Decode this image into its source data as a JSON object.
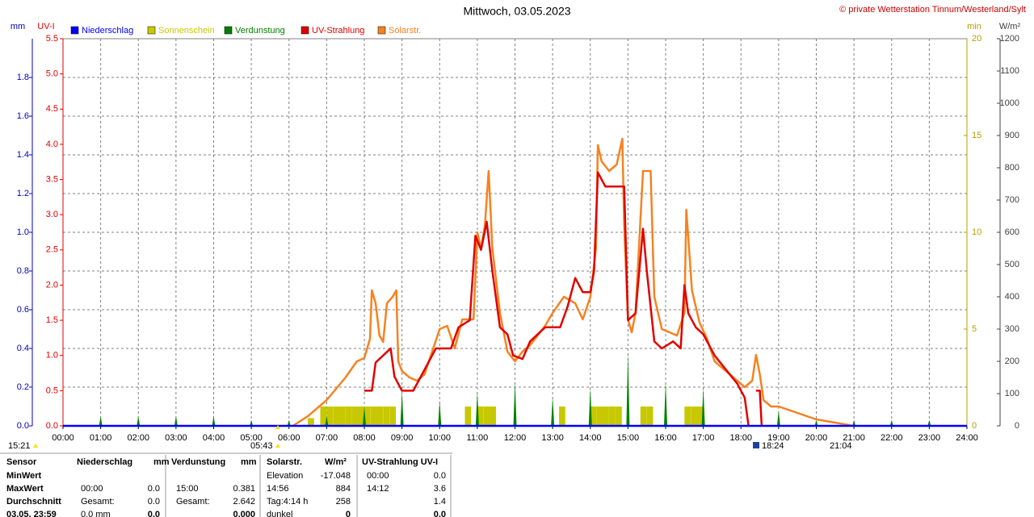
{
  "chart_data": {
    "type": "line",
    "title": "Mittwoch, 03.05.2023",
    "copyright": "© private Wetterstation Tinnum/Westerland/Sylt",
    "xlim": [
      0,
      24
    ],
    "xticks": [
      {
        "value": 0,
        "label": "00:00"
      },
      {
        "value": 1,
        "label": "01:00"
      },
      {
        "value": 2,
        "label": "02:00"
      },
      {
        "value": 3,
        "label": "03:00"
      },
      {
        "value": 4,
        "label": "04:00"
      },
      {
        "value": 5,
        "label": "05:00"
      },
      {
        "value": 6,
        "label": "06:00"
      },
      {
        "value": 7,
        "label": "07:00"
      },
      {
        "value": 8,
        "label": "08:00"
      },
      {
        "value": 9,
        "label": "09:00"
      },
      {
        "value": 10,
        "label": "10:00"
      },
      {
        "value": 11,
        "label": "11:00"
      },
      {
        "value": 12,
        "label": "12:00"
      },
      {
        "value": 13,
        "label": "13:00"
      },
      {
        "value": 14,
        "label": "14:00"
      },
      {
        "value": 15,
        "label": "15:00"
      },
      {
        "value": 16,
        "label": "16:00"
      },
      {
        "value": 17,
        "label": "17:00"
      },
      {
        "value": 18,
        "label": "18:00"
      },
      {
        "value": 19,
        "label": "19:00"
      },
      {
        "value": 20,
        "label": "20:00"
      },
      {
        "value": 21,
        "label": "21:00"
      },
      {
        "value": 22,
        "label": "22:00"
      },
      {
        "value": 23,
        "label": "23:00"
      },
      {
        "value": 24,
        "label": "24:00"
      }
    ],
    "y_label": "mm",
    "ylim": [
      0,
      2.0
    ],
    "yticks": [
      {
        "value": 0,
        "label": "0.0"
      },
      0.2,
      0.4,
      0.6,
      0.8,
      {
        "value": 1,
        "label": "1.0"
      },
      1.2,
      1.4,
      1.6,
      1.8
    ],
    "y2_label": "UV-I",
    "y2lim": [
      0,
      5.5
    ],
    "y2ticks": [
      {
        "value": 0,
        "label": "0.0"
      },
      0.5,
      {
        "value": 1,
        "label": "1.0"
      },
      1.5,
      {
        "value": 2,
        "label": "2.0"
      },
      2.5,
      {
        "value": 3,
        "label": "3.0"
      },
      3.5,
      {
        "value": 4,
        "label": "4.0"
      },
      4.5,
      {
        "value": 5,
        "label": "5.0"
      },
      5.5
    ],
    "y3_label": "min",
    "y3lim": [
      0,
      20
    ],
    "y3ticks": [
      0,
      5,
      10,
      15,
      20
    ],
    "y4_label": "W/m²",
    "y4lim": [
      0,
      1200
    ],
    "y4ticks": [
      0,
      100,
      200,
      300,
      400,
      500,
      600,
      700,
      800,
      900,
      1000,
      1100,
      1200
    ],
    "grid": true,
    "series": [
      {
        "name": "Niederschlag",
        "color": "#0000ff",
        "axis": "y",
        "type": "line",
        "x": [
          0,
          24
        ],
        "values": [
          0,
          0
        ]
      },
      {
        "name": "Sonnenschein",
        "color": "#c8c800",
        "axis": "y3",
        "type": "bar",
        "x": [
          6.5,
          6.83,
          7.0,
          7.17,
          7.33,
          7.5,
          7.67,
          7.83,
          8.0,
          8.17,
          8.33,
          8.5,
          8.67,
          10.67,
          11.0,
          11.17,
          11.33,
          13.17,
          14.0,
          14.17,
          14.33,
          14.5,
          14.67,
          15.33,
          15.5,
          16.5,
          16.67,
          16.83
        ],
        "values": [
          0.4,
          1,
          1,
          1,
          1,
          1,
          1,
          1,
          1,
          1,
          1,
          1,
          1,
          1,
          1,
          1,
          1,
          1,
          1,
          1,
          1,
          1,
          1,
          1,
          1,
          1,
          1,
          1
        ]
      },
      {
        "name": "Verdunstung",
        "color": "#008000",
        "axis": "y",
        "type": "spike",
        "x": [
          1,
          2,
          3,
          4,
          5,
          6,
          7,
          8,
          9,
          10,
          11,
          12,
          13,
          14,
          15,
          16,
          17,
          19,
          20,
          21,
          22,
          23
        ],
        "values": [
          0.05,
          0.05,
          0.05,
          0.05,
          0.03,
          0.03,
          0.05,
          0.1,
          0.18,
          0.13,
          0.18,
          0.23,
          0.15,
          0.2,
          0.381,
          0.23,
          0.2,
          0.08,
          0.03,
          0.03,
          0.03,
          0.03
        ]
      },
      {
        "name": "UV-Strahlung",
        "color": "#e00000",
        "axis": "y2",
        "type": "line",
        "x": [
          8.0,
          8.2,
          8.3,
          8.5,
          8.7,
          8.8,
          9.0,
          9.3,
          9.6,
          9.9,
          10.3,
          10.5,
          10.8,
          10.95,
          11.1,
          11.25,
          11.4,
          11.6,
          11.8,
          11.95,
          12.2,
          12.4,
          12.8,
          13.2,
          13.4,
          13.6,
          13.8,
          14.0,
          14.1,
          14.2,
          14.4,
          14.9,
          15.0,
          15.2,
          15.4,
          15.5,
          15.7,
          15.9,
          16.2,
          16.4,
          16.5,
          16.6,
          16.8,
          17.0,
          17.3,
          17.6,
          17.9,
          18.1,
          18.2,
          18.3,
          18.4,
          18.5,
          18.55
        ],
        "values": [
          0.5,
          0.5,
          0.9,
          1.0,
          1.1,
          0.7,
          0.5,
          0.5,
          0.8,
          1.1,
          1.1,
          1.4,
          1.5,
          2.7,
          2.5,
          2.9,
          2.2,
          1.4,
          1.3,
          1.0,
          0.95,
          1.2,
          1.4,
          1.4,
          1.7,
          2.1,
          1.9,
          1.9,
          2.2,
          3.6,
          3.4,
          3.4,
          1.5,
          1.6,
          2.8,
          2.2,
          1.2,
          1.1,
          1.2,
          1.1,
          2.0,
          1.6,
          1.4,
          1.3,
          1.0,
          0.8,
          0.6,
          0.4,
          0,
          null,
          0.5,
          0.5,
          0
        ]
      },
      {
        "name": "Solarstr.",
        "color": "#f58220",
        "axis": "y4",
        "type": "line",
        "x": [
          6.1,
          6.5,
          7.0,
          7.5,
          7.8,
          8.0,
          8.15,
          8.2,
          8.3,
          8.4,
          8.5,
          8.6,
          8.75,
          8.85,
          8.9,
          9.0,
          9.2,
          9.4,
          9.6,
          9.8,
          10.0,
          10.2,
          10.4,
          10.6,
          10.9,
          11.0,
          11.1,
          11.2,
          11.3,
          11.4,
          11.6,
          11.8,
          12.0,
          12.2,
          12.4,
          12.6,
          12.8,
          13.0,
          13.3,
          13.6,
          13.8,
          14.0,
          14.15,
          14.2,
          14.3,
          14.5,
          14.7,
          14.85,
          14.9,
          15.0,
          15.1,
          15.2,
          15.4,
          15.6,
          15.7,
          15.9,
          16.1,
          16.3,
          16.5,
          16.55,
          16.7,
          16.9,
          17.1,
          17.3,
          17.5,
          17.7,
          17.9,
          18.1,
          18.3,
          18.4,
          18.5,
          18.6,
          18.8,
          19.0,
          19.5,
          20.0,
          20.5,
          21.0
        ],
        "values": [
          0,
          30,
          80,
          150,
          200,
          210,
          270,
          420,
          380,
          280,
          260,
          380,
          400,
          420,
          200,
          170,
          150,
          140,
          160,
          230,
          300,
          310,
          240,
          330,
          330,
          600,
          550,
          620,
          790,
          550,
          350,
          230,
          200,
          230,
          250,
          280,
          310,
          350,
          400,
          380,
          330,
          400,
          550,
          870,
          820,
          790,
          810,
          890,
          620,
          330,
          290,
          350,
          790,
          790,
          400,
          300,
          290,
          280,
          350,
          670,
          420,
          320,
          270,
          200,
          180,
          160,
          140,
          120,
          140,
          220,
          160,
          80,
          60,
          60,
          40,
          20,
          10,
          0
        ]
      }
    ],
    "annotations": [
      "15:21",
      "05:43",
      "18:24",
      "21:04"
    ]
  },
  "table": {
    "header": [
      "Sensor",
      "Niederschlag",
      "mm",
      "Verdunstung",
      "mm",
      "Solarstr.",
      "W/m²",
      "UV-Strahlung UV-I"
    ],
    "rows": [
      [
        "MinWert",
        null,
        null,
        null,
        null,
        "Elevation",
        "-17.048",
        "00:00",
        "0.0"
      ],
      [
        "MaxWert",
        "00:00",
        "0.0",
        "15:00",
        "0.381",
        "14:56",
        "884",
        "14:12",
        "3.6"
      ],
      [
        "Durchschnitt",
        "Gesamt:",
        "0.0",
        "Gesamt:",
        "2.642",
        "Tag:4:14 h",
        "258",
        null,
        "1.4"
      ],
      [
        "03.05. 23:59",
        "0.0 mm",
        "0.0",
        null,
        "0.000",
        "dunkel",
        "0",
        null,
        "0.0"
      ]
    ]
  }
}
